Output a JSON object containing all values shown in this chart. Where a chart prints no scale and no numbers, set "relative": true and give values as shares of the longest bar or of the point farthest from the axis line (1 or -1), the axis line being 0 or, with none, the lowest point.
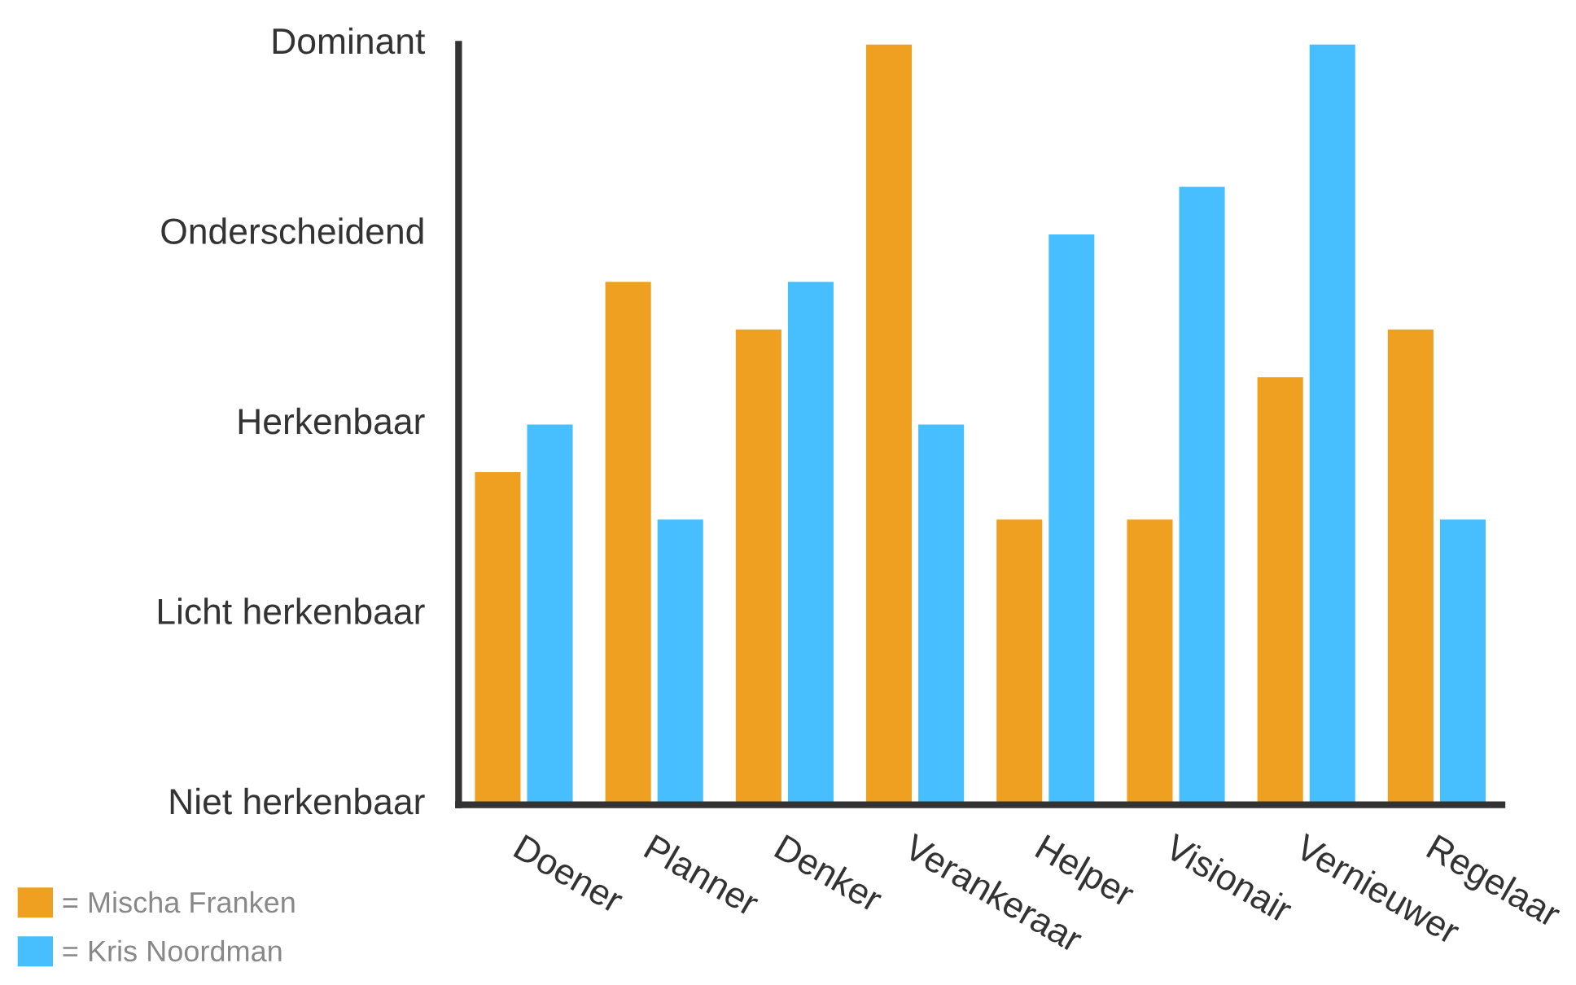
{
  "chart_data": {
    "type": "bar",
    "categories": [
      "Doener",
      "Planner",
      "Denker",
      "Verankeraar",
      "Helper",
      "Visionair",
      "Vernieuwer",
      "Regelaar"
    ],
    "relative": true,
    "series": [
      {
        "name": "= Mischa Franken",
        "color": "#f0a020",
        "values": [
          0.4375,
          0.6875,
          0.625,
          1,
          0.375,
          0.375,
          0.5625,
          0.625
        ]
      },
      {
        "name": "= Kris Noordman",
        "color": "#47bfff",
        "values": [
          0.5,
          0.375,
          0.6875,
          0.5,
          0.75,
          0.8125,
          1,
          0.375
        ]
      }
    ],
    "annotations": [
      "Dominant",
      "Onderscheidend",
      "Herkenbaar",
      "Licht herkenbaar",
      "Niet herkenbaar"
    ],
    "grid": false,
    "legend": "bottom left"
  }
}
